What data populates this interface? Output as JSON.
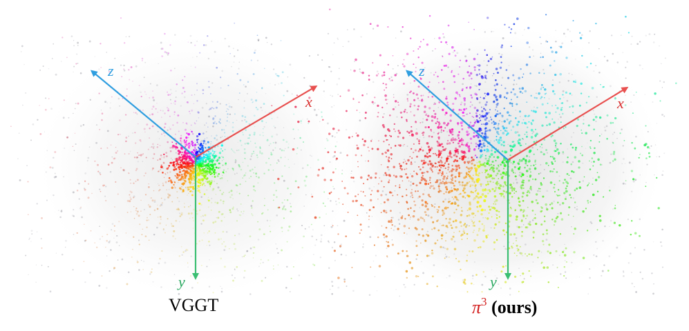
{
  "panels": [
    {
      "caption": "VGGT",
      "axes": {
        "x": "x",
        "y": "y",
        "z": "z"
      }
    },
    {
      "caption_symbol": "π",
      "caption_exponent": "3",
      "caption_suffix": " (ours)",
      "axes": {
        "x": "x",
        "y": "y",
        "z": "z"
      }
    }
  ],
  "colors": {
    "x_axis": "#e8504f",
    "y_axis": "#3bbf72",
    "z_axis": "#2f9ee0",
    "accent_caption": "#d21a1a"
  }
}
